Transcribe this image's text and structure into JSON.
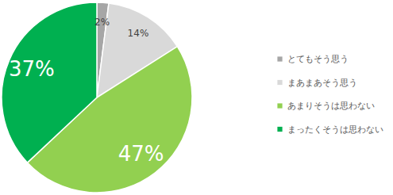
{
  "chart_data": {
    "type": "pie",
    "categories": [
      "とてもそう思う",
      "まあまあそう思う",
      "あまりそうは思わない",
      "まったくそうは思わない"
    ],
    "values": [
      2,
      14,
      47,
      37
    ],
    "value_labels": [
      "2%",
      "14%",
      "47%",
      "37%"
    ],
    "colors": [
      "#a6a6a6",
      "#d9d9d9",
      "#92d050",
      "#00b050"
    ],
    "data_labels": true,
    "legend": "right"
  }
}
